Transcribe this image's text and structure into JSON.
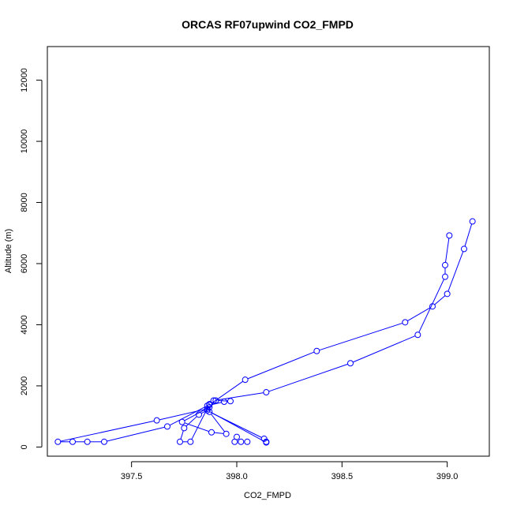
{
  "chart_data": {
    "type": "line",
    "title": "ORCAS RF07upwind CO2_FMPD",
    "xlabel": "CO2_FMPD",
    "ylabel": "Altitude (m)",
    "xlim": [
      397.1,
      399.2
    ],
    "ylim": [
      -300,
      13100
    ],
    "x_ticks": [
      397.5,
      398.0,
      398.5,
      399.0
    ],
    "x_tick_labels": [
      "397.5",
      "398.0",
      "398.5",
      "399.0"
    ],
    "y_ticks": [
      0,
      2000,
      4000,
      6000,
      8000,
      10000,
      12000
    ],
    "y_tick_labels": [
      "0",
      "2000",
      "4000",
      "6000",
      "8000",
      "10000",
      "12000"
    ],
    "grid": false,
    "series": [
      {
        "color": "#0000ff",
        "marker": "open-circle",
        "points": [
          {
            "x": 399.12,
            "y": 7380
          },
          {
            "x": 399.08,
            "y": 6480
          },
          {
            "x": 399.0,
            "y": 5010
          },
          {
            "x": 398.93,
            "y": 4600
          },
          {
            "x": 398.8,
            "y": 4080
          },
          {
            "x": 398.38,
            "y": 3140
          },
          {
            "x": 398.04,
            "y": 2200
          },
          {
            "x": 397.87,
            "y": 1380
          },
          {
            "x": 397.86,
            "y": 1250
          },
          {
            "x": 397.62,
            "y": 870
          },
          {
            "x": 397.15,
            "y": 170
          },
          {
            "x": 397.22,
            "y": 170
          },
          {
            "x": 397.29,
            "y": 170
          },
          {
            "x": 397.37,
            "y": 170
          },
          {
            "x": 397.67,
            "y": 670
          },
          {
            "x": 397.86,
            "y": 1350
          },
          {
            "x": 397.94,
            "y": 1480
          },
          {
            "x": 397.97,
            "y": 1500
          },
          {
            "x": 397.9,
            "y": 1520
          },
          {
            "x": 397.87,
            "y": 1300
          },
          {
            "x": 397.74,
            "y": 820
          },
          {
            "x": 397.88,
            "y": 480
          },
          {
            "x": 397.95,
            "y": 430
          },
          {
            "x": 397.87,
            "y": 1150
          },
          {
            "x": 398.13,
            "y": 270
          },
          {
            "x": 398.14,
            "y": 170
          },
          {
            "x": 398.14,
            "y": 150
          },
          {
            "x": 397.86,
            "y": 1200
          },
          {
            "x": 397.82,
            "y": 1060
          },
          {
            "x": 397.75,
            "y": 620
          },
          {
            "x": 397.73,
            "y": 170
          },
          {
            "x": 397.78,
            "y": 170
          },
          {
            "x": 397.87,
            "y": 1400
          },
          {
            "x": 397.89,
            "y": 1520
          },
          {
            "x": 398.14,
            "y": 1790
          },
          {
            "x": 398.54,
            "y": 2740
          },
          {
            "x": 398.86,
            "y": 3670
          },
          {
            "x": 398.99,
            "y": 5570
          },
          {
            "x": 398.99,
            "y": 5950
          },
          {
            "x": 399.01,
            "y": 6920
          }
        ],
        "extra_points": [
          {
            "x": 397.99,
            "y": 170
          },
          {
            "x": 398.02,
            "y": 170
          },
          {
            "x": 398.05,
            "y": 170
          },
          {
            "x": 398.0,
            "y": 330
          }
        ]
      }
    ]
  }
}
